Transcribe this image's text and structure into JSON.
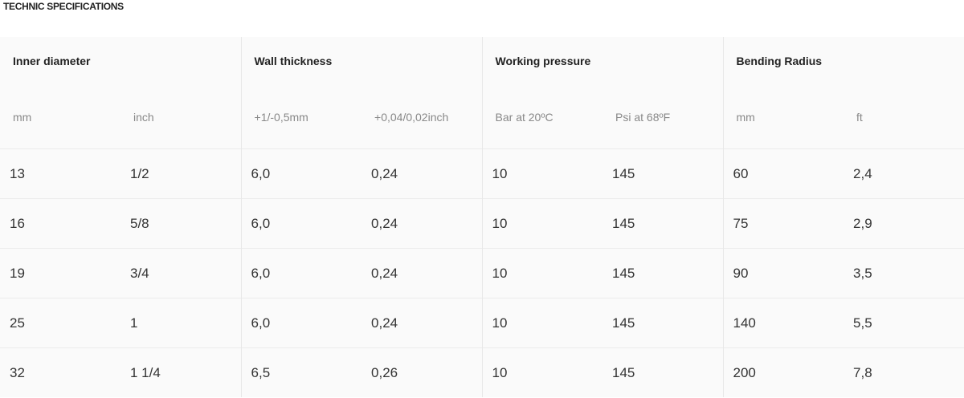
{
  "title": "TECHNIC SPECIFICATIONS",
  "table": {
    "groups": [
      "Inner diameter",
      "Wall thickness",
      "Working pressure",
      "Bending Radius"
    ],
    "units": [
      "mm",
      "inch",
      "+1/-0,5mm",
      "+0,04/0,02inch",
      "Bar at 20ºC",
      "Psi at 68ºF",
      "mm",
      "ft"
    ],
    "rows": [
      [
        "13",
        "1/2",
        "6,0",
        "0,24",
        "10",
        "145",
        "60",
        "2,4"
      ],
      [
        "16",
        "5/8",
        "6,0",
        "0,24",
        "10",
        "145",
        "75",
        "2,9"
      ],
      [
        "19",
        "3/4",
        "6,0",
        "0,24",
        "10",
        "145",
        "90",
        "3,5"
      ],
      [
        "25",
        "1",
        "6,0",
        "0,24",
        "10",
        "145",
        "140",
        "5,5"
      ],
      [
        "32",
        "1 1/4",
        "6,5",
        "0,26",
        "10",
        "145",
        "200",
        "7,8"
      ]
    ]
  }
}
